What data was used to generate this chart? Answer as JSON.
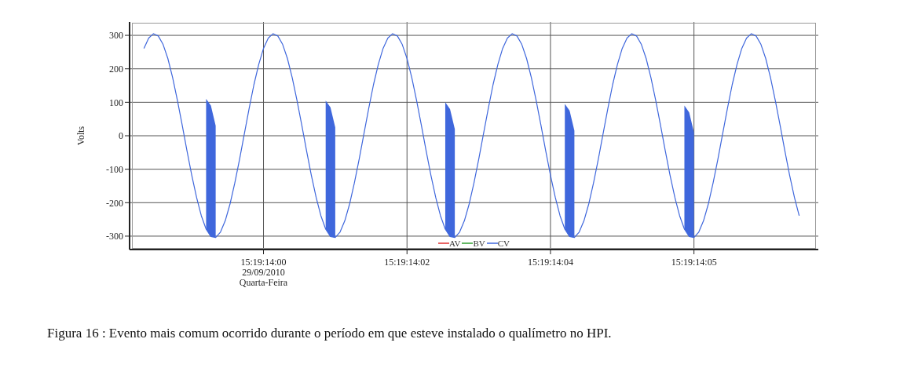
{
  "chart_data": {
    "type": "line",
    "ylabel": "Volts",
    "categories": [
      null,
      null,
      null,
      null,
      null,
      null,
      null,
      null,
      null,
      null,
      null,
      null,
      null,
      null,
      null,
      null,
      null,
      null,
      null,
      null,
      null,
      null,
      null,
      null,
      null,
      null,
      null,
      null,
      "15:19:14:00\n29/09/2010\nQuarta-Feira",
      null,
      null,
      null,
      null,
      null,
      null,
      null,
      null,
      null,
      null,
      null,
      null,
      null,
      null,
      null,
      null,
      null,
      null,
      null,
      null,
      null,
      null,
      null,
      null,
      null,
      null,
      null,
      null,
      null,
      "15:19:14:02",
      null,
      null,
      null,
      null,
      null,
      null,
      null,
      null,
      null,
      null,
      null,
      null,
      null,
      null,
      null,
      null,
      null,
      null,
      null,
      null,
      null,
      null,
      null,
      null,
      null,
      null,
      null,
      null,
      null,
      "15:19:14:04",
      null,
      null,
      null,
      null,
      null,
      null,
      null,
      null,
      null,
      null,
      null,
      null,
      null,
      null,
      null,
      null,
      null,
      null,
      null,
      null,
      null,
      null,
      null,
      null,
      null,
      null,
      null,
      null,
      null,
      "15:19:14:05",
      null,
      null,
      null,
      null,
      null,
      null,
      null,
      null,
      null,
      null,
      null,
      null,
      null,
      null,
      null,
      null,
      null,
      null,
      null,
      null,
      null,
      null,
      null,
      null,
      null,
      null
    ],
    "series": [
      {
        "name": "AV",
        "color": "#e03030",
        "values": [
          null,
          null,
          null,
          null,
          null,
          null,
          null,
          null,
          null,
          null,
          null,
          null,
          null,
          null,
          null,
          null,
          null,
          null,
          null,
          null,
          null,
          null,
          null,
          null,
          null,
          null,
          null,
          null,
          null,
          null,
          null,
          null,
          null,
          null,
          null,
          null,
          null,
          null,
          null,
          null,
          null,
          null,
          null,
          null,
          null,
          null,
          null,
          null,
          null,
          null,
          null,
          null,
          null,
          null,
          null,
          null,
          null,
          null,
          null,
          null,
          null,
          null,
          null,
          null,
          null,
          null,
          null,
          null,
          null,
          null,
          null,
          null,
          null,
          null,
          null,
          null,
          null,
          null,
          null,
          null,
          null,
          null,
          null,
          null,
          null,
          null,
          null,
          null,
          null,
          null,
          null,
          null,
          null,
          null,
          null,
          null,
          null,
          null,
          null,
          null,
          null,
          null,
          null,
          null,
          null,
          null,
          null,
          null,
          null,
          null,
          null,
          null,
          null,
          null,
          null,
          null,
          null,
          null,
          null,
          null,
          null,
          null,
          null,
          null,
          null,
          null,
          null,
          null,
          null,
          null,
          null,
          null,
          null,
          null,
          null,
          null,
          null,
          null,
          null,
          null,
          null,
          null,
          null,
          null,
          null
        ]
      },
      {
        "name": "BV",
        "color": "#30a030",
        "values": [
          null,
          null,
          null,
          null,
          null,
          null,
          null,
          null,
          null,
          null,
          null,
          null,
          null,
          null,
          null,
          null,
          null,
          null,
          null,
          null,
          null,
          null,
          null,
          null,
          null,
          null,
          null,
          null,
          null,
          null,
          null,
          null,
          null,
          null,
          null,
          null,
          null,
          null,
          null,
          null,
          null,
          null,
          null,
          null,
          null,
          null,
          null,
          null,
          null,
          null,
          null,
          null,
          null,
          null,
          null,
          null,
          null,
          null,
          null,
          null,
          null,
          null,
          null,
          null,
          null,
          null,
          null,
          null,
          null,
          null,
          null,
          null,
          null,
          null,
          null,
          null,
          null,
          null,
          null,
          null,
          null,
          null,
          null,
          null,
          null,
          null,
          null,
          null,
          null,
          null,
          null,
          null,
          null,
          null,
          null,
          null,
          null,
          null,
          null,
          null,
          null,
          null,
          null,
          null,
          null,
          null,
          null,
          null,
          null,
          null,
          null,
          null,
          null,
          null,
          null,
          null,
          null,
          null,
          null,
          null,
          null,
          null,
          null,
          null,
          null,
          null,
          null,
          null,
          null,
          null,
          null,
          null,
          null,
          null,
          null,
          null,
          null,
          null,
          null,
          null,
          null,
          null,
          null,
          null,
          null
        ]
      },
      {
        "name": "CV",
        "color": "#3f67dc",
        "values": [
          null,
          null,
          null,
          261,
          292,
          305,
          298,
          273,
          231,
          174,
          106,
          32,
          -45,
          -118,
          -184,
          -239,
          -279,
          -301,
          -304,
          -288,
          -254,
          -204,
          -141,
          -70,
          6,
          82,
          153,
          213,
          261,
          292,
          305,
          298,
          273,
          231,
          174,
          106,
          32,
          -45,
          -118,
          -184,
          -239,
          -279,
          -301,
          -304,
          -288,
          -254,
          -204,
          -141,
          -70,
          6,
          82,
          153,
          213,
          261,
          292,
          305,
          298,
          273,
          231,
          174,
          106,
          32,
          -45,
          -118,
          -184,
          -239,
          -279,
          -301,
          -304,
          -288,
          -254,
          -204,
          -141,
          -70,
          6,
          82,
          153,
          213,
          261,
          292,
          305,
          298,
          273,
          231,
          174,
          106,
          32,
          -45,
          -118,
          -184,
          -239,
          -279,
          -301,
          -304,
          -288,
          -254,
          -204,
          -141,
          -70,
          6,
          82,
          153,
          213,
          261,
          292,
          305,
          298,
          273,
          231,
          174,
          106,
          32,
          -45,
          -118,
          -184,
          -239,
          -279,
          -301,
          -304,
          -288,
          -254,
          -204,
          -141,
          -70,
          6,
          82,
          153,
          213,
          261,
          292,
          305,
          298,
          273,
          231,
          174,
          106,
          32,
          -45,
          -118,
          -184,
          -239,
          null,
          null,
          null,
          null
        ],
        "lower": [
          null,
          null,
          null,
          null,
          null,
          null,
          null,
          null,
          null,
          null,
          null,
          null,
          null,
          null,
          null,
          null,
          -279,
          -301,
          -304,
          null,
          null,
          null,
          null,
          null,
          null,
          null,
          null,
          null,
          null,
          null,
          null,
          null,
          null,
          null,
          null,
          null,
          null,
          null,
          null,
          null,
          null,
          -279,
          -301,
          -304,
          null,
          null,
          null,
          null,
          null,
          null,
          null,
          null,
          null,
          null,
          null,
          null,
          null,
          null,
          null,
          null,
          null,
          null,
          null,
          null,
          null,
          null,
          -279,
          -301,
          -304,
          null,
          null,
          null,
          null,
          null,
          null,
          null,
          null,
          null,
          null,
          null,
          null,
          null,
          null,
          null,
          null,
          null,
          null,
          null,
          null,
          null,
          null,
          -279,
          -301,
          -304,
          null,
          null,
          null,
          null,
          null,
          null,
          null,
          null,
          null,
          null,
          null,
          null,
          null,
          null,
          null,
          null,
          null,
          null,
          null,
          null,
          null,
          null,
          -279,
          -301,
          -304,
          null,
          null,
          null,
          null,
          null,
          null,
          null,
          null,
          null,
          null,
          null,
          null,
          null,
          null,
          null,
          null,
          null,
          null,
          null,
          null,
          null,
          null,
          null,
          null,
          null,
          null
        ],
        "upper": [
          null,
          null,
          null,
          null,
          null,
          null,
          null,
          null,
          null,
          null,
          null,
          null,
          null,
          null,
          null,
          null,
          110,
          90,
          30,
          null,
          null,
          null,
          null,
          null,
          null,
          null,
          null,
          null,
          null,
          null,
          null,
          null,
          null,
          null,
          null,
          null,
          null,
          null,
          null,
          null,
          null,
          105,
          85,
          25,
          null,
          null,
          null,
          null,
          null,
          null,
          null,
          null,
          null,
          null,
          null,
          null,
          null,
          null,
          null,
          null,
          null,
          null,
          null,
          null,
          null,
          null,
          100,
          80,
          20,
          null,
          null,
          null,
          null,
          null,
          null,
          null,
          null,
          null,
          null,
          null,
          null,
          null,
          null,
          null,
          null,
          null,
          null,
          null,
          null,
          null,
          null,
          95,
          75,
          15,
          null,
          null,
          null,
          null,
          null,
          null,
          null,
          null,
          null,
          null,
          null,
          null,
          null,
          null,
          null,
          null,
          null,
          null,
          null,
          null,
          null,
          null,
          90,
          70,
          10,
          null,
          null,
          null,
          null,
          null,
          null,
          null,
          null,
          null,
          null,
          null,
          null,
          null,
          null,
          null,
          null,
          null,
          null,
          null,
          null,
          null,
          null,
          null,
          null,
          null,
          null
        ]
      }
    ],
    "ylim": [
      -340,
      340
    ],
    "yticks": [
      -300,
      -200,
      -100,
      0,
      100,
      200,
      300
    ],
    "grid": true,
    "legend": "bottom",
    "marker": "none",
    "line_style": "solid",
    "annotations": [
      "Figura 16 : Evento mais comum ocorrido durante o período em que esteve instalado o qualímetro no HPI."
    ]
  }
}
